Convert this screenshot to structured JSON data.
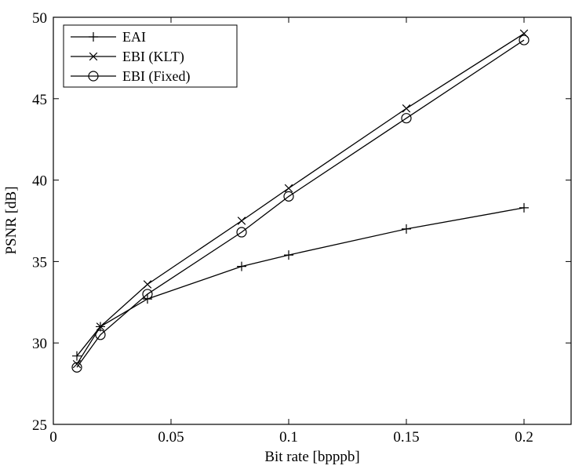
{
  "chart_data": {
    "type": "line",
    "title": "",
    "xlabel": "Bit rate [bpppb]",
    "ylabel": "PSNR [dB]",
    "xlim": [
      0,
      0.22
    ],
    "ylim": [
      25,
      50
    ],
    "xticks": [
      0,
      0.05,
      0.1,
      0.15,
      0.2
    ],
    "xtick_labels": [
      "0",
      "0.05",
      "0.1",
      "0.15",
      "0.2"
    ],
    "yticks": [
      25,
      30,
      35,
      40,
      45,
      50
    ],
    "ytick_labels": [
      "25",
      "30",
      "35",
      "40",
      "45",
      "50"
    ],
    "grid": false,
    "legend_position": "top-left",
    "line_color": "#000000",
    "series": [
      {
        "name": "EAI",
        "marker": "plus",
        "x": [
          0.01,
          0.02,
          0.04,
          0.08,
          0.1,
          0.15,
          0.2
        ],
        "y": [
          29.2,
          31.0,
          32.7,
          34.7,
          35.4,
          37.0,
          38.3
        ]
      },
      {
        "name": "EBI (KLT)",
        "marker": "cross",
        "x": [
          0.01,
          0.02,
          0.04,
          0.08,
          0.1,
          0.15,
          0.2
        ],
        "y": [
          28.7,
          31.0,
          33.6,
          37.5,
          39.5,
          44.4,
          49.0
        ]
      },
      {
        "name": "EBI (Fixed)",
        "marker": "circle",
        "x": [
          0.01,
          0.02,
          0.04,
          0.08,
          0.1,
          0.15,
          0.2
        ],
        "y": [
          28.5,
          30.5,
          33.0,
          36.8,
          39.0,
          43.8,
          48.6
        ]
      }
    ]
  }
}
